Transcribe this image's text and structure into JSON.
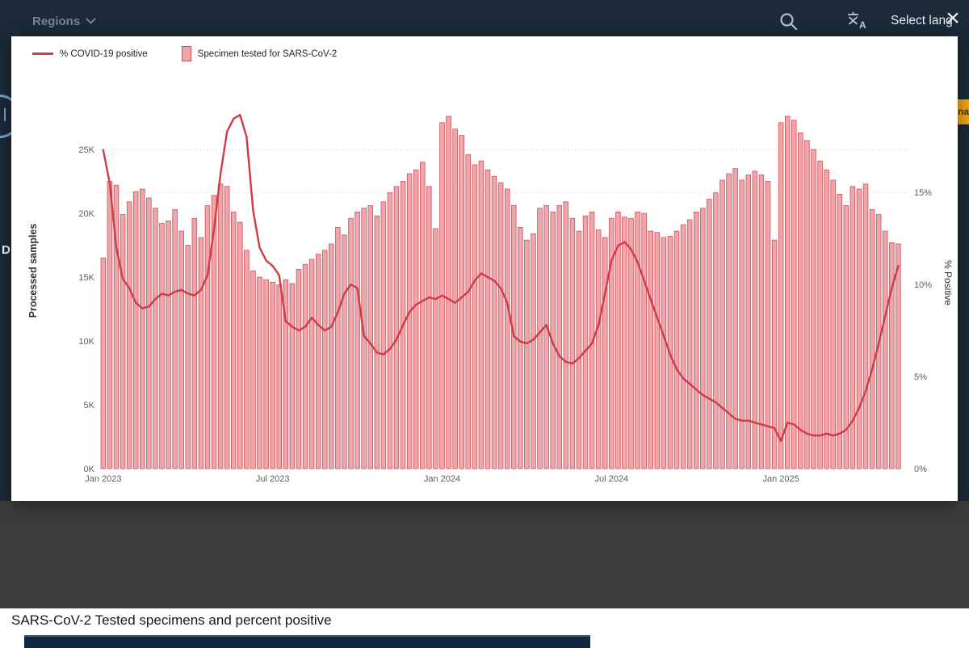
{
  "topbar": {
    "regions_label": "Regions",
    "select_language_label": "Select lang",
    "close_glyph": "×"
  },
  "fragments": {
    "left_text": "D",
    "right_badge_text": "na"
  },
  "caption": "SARS-CoV-2 Tested specimens and percent positive",
  "colors": {
    "topbar_bg": "#1c2a39",
    "gray_band": "#3d3c3c",
    "bar_fill": "#efa6ab",
    "bar_stroke": "#cf5058",
    "line": "#d13b44",
    "accent_yellow": "#f3a712",
    "panel_navy": "#142840",
    "logo_blue": "#6ea9d8"
  },
  "chart_data": {
    "type": "combo",
    "title": "SARS-CoV-2 Tested specimens and percent positive",
    "x_description": "Weekly values from Jan 2023 to May 2025",
    "x_tick_labels": [
      "Jan 2023",
      "Jul 2023",
      "Jan 2024",
      "Jul 2024",
      "Jan 2025"
    ],
    "x_tick_weeks": [
      0,
      26,
      52,
      78,
      104
    ],
    "grid": "dotted horizontal at 25K and 15%",
    "legend_position": "top-left",
    "left_axis": {
      "label": "Processed samples",
      "unit": "K",
      "ticks": [
        "0K",
        "5K",
        "10K",
        "15K",
        "20K",
        "25K"
      ],
      "tick_values": [
        0,
        5,
        10,
        15,
        20,
        25
      ],
      "range": [
        0,
        27.8
      ]
    },
    "right_axis": {
      "label": "% Positive",
      "unit": "%",
      "ticks": [
        "0%",
        "5%",
        "10%",
        "15%"
      ],
      "tick_values": [
        0,
        5,
        10,
        15
      ],
      "range": [
        0,
        19.3
      ]
    },
    "series": [
      {
        "name": "Specimen tested for SARS-CoV-2",
        "type": "bar",
        "unit": "thousand specimens",
        "color": "#efa6ab",
        "stroke": "#cf5058",
        "values": [
          16.5,
          22.5,
          22.2,
          19.9,
          20.9,
          21.7,
          21.9,
          21.2,
          20.4,
          19.2,
          19.4,
          20.3,
          18.6,
          17.5,
          19.6,
          18.1,
          20.6,
          21.4,
          22.3,
          22.1,
          20.1,
          19.3,
          17.1,
          15.5,
          15.0,
          14.8,
          14.6,
          14.4,
          14.8,
          14.5,
          15.6,
          16.0,
          16.4,
          16.8,
          17.1,
          17.6,
          18.9,
          18.3,
          19.6,
          20.1,
          20.4,
          20.6,
          19.8,
          20.9,
          21.6,
          22.1,
          22.5,
          23.1,
          23.4,
          24.0,
          22.1,
          18.8,
          27.1,
          27.6,
          26.6,
          26.1,
          24.6,
          23.8,
          24.1,
          23.4,
          22.9,
          22.4,
          21.9,
          20.6,
          18.9,
          17.9,
          18.4,
          20.4,
          20.6,
          20.1,
          20.6,
          20.9,
          19.6,
          18.6,
          19.8,
          20.1,
          18.7,
          18.1,
          19.6,
          20.1,
          19.7,
          19.6,
          20.1,
          20.0,
          18.6,
          18.5,
          18.1,
          18.2,
          18.6,
          19.1,
          19.5,
          20.1,
          20.4,
          21.1,
          21.6,
          22.6,
          23.1,
          23.5,
          22.6,
          23.0,
          23.3,
          23.0,
          22.5,
          17.9,
          27.1,
          27.6,
          27.3,
          26.3,
          25.7,
          25.0,
          24.1,
          23.4,
          22.6,
          21.5,
          20.6,
          22.1,
          21.9,
          22.3,
          20.3,
          19.9,
          18.6,
          17.7,
          17.6
        ]
      },
      {
        "name": "% COVID-19 positive",
        "type": "line",
        "unit": "percent",
        "color": "#d13b44",
        "values": [
          17.3,
          15.5,
          12.0,
          10.3,
          9.8,
          9.0,
          8.7,
          8.8,
          9.2,
          9.5,
          9.4,
          9.6,
          9.7,
          9.5,
          9.4,
          9.7,
          10.5,
          13.0,
          16.0,
          18.3,
          19.0,
          19.2,
          18.0,
          14.0,
          12.0,
          11.3,
          11.0,
          10.5,
          8.0,
          7.7,
          7.5,
          7.7,
          8.2,
          7.8,
          7.5,
          7.7,
          8.5,
          9.5,
          10.0,
          9.8,
          7.2,
          6.8,
          6.3,
          6.2,
          6.5,
          7.0,
          7.8,
          8.5,
          8.9,
          9.1,
          9.3,
          9.2,
          9.4,
          9.2,
          9.0,
          9.3,
          9.6,
          10.2,
          10.6,
          10.4,
          10.2,
          9.8,
          9.0,
          7.2,
          6.9,
          6.8,
          7.0,
          7.4,
          7.8,
          6.8,
          6.1,
          5.8,
          5.7,
          6.0,
          6.4,
          6.8,
          7.8,
          9.5,
          11.3,
          12.1,
          12.3,
          11.9,
          11.2,
          10.2,
          9.2,
          8.2,
          7.2,
          6.2,
          5.4,
          4.9,
          4.6,
          4.3,
          4.0,
          3.8,
          3.6,
          3.3,
          3.0,
          2.7,
          2.6,
          2.6,
          2.5,
          2.4,
          2.3,
          2.2,
          1.5,
          2.5,
          2.4,
          2.1,
          1.9,
          1.8,
          1.8,
          1.9,
          1.8,
          1.9,
          2.1,
          2.6,
          3.3,
          4.2,
          5.4,
          6.8,
          8.3,
          9.8,
          11.0
        ]
      }
    ]
  }
}
